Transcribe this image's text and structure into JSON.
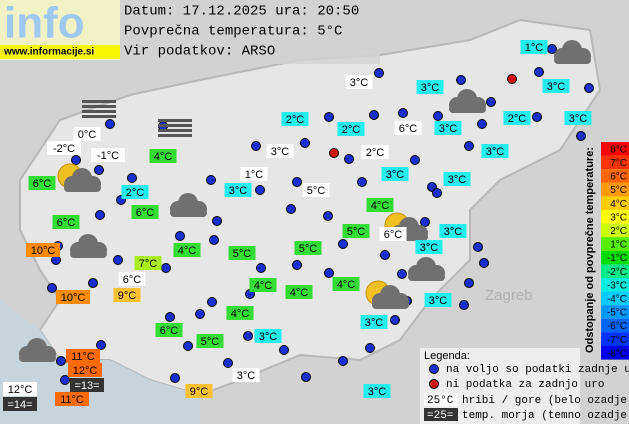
{
  "header": {
    "logo": "info",
    "site": "www.informacije.si",
    "date_line": "Datum: 17.12.2025 ura: 20:50",
    "avg_line": "Povprečna temperatura: 5°C",
    "source_line": "Vir podatkov: ARSO"
  },
  "map_label": "Zagreb",
  "stations": [
    {
      "label": "1°C",
      "color": "#22eeee"
    },
    {
      "label": "3°C",
      "color": "#ffffff"
    },
    {
      "label": "3°C",
      "color": "#22eeee"
    },
    {
      "label": "3°C",
      "color": "#22eeee"
    },
    {
      "label": "2°C",
      "color": "#22eeee"
    },
    {
      "label": "2°C",
      "color": "#22eeee"
    },
    {
      "label": "6°C",
      "color": "#ffffff"
    },
    {
      "label": "3°C",
      "color": "#22eeee"
    },
    {
      "label": "2°C",
      "color": "#22eeee"
    },
    {
      "label": "3°C",
      "color": "#22eeee"
    },
    {
      "label": "0°C",
      "color": "#ffffff"
    },
    {
      "label": "-2°C",
      "color": "#ffffff"
    },
    {
      "label": "-1°C",
      "color": "#ffffff"
    },
    {
      "label": "4°C",
      "color": "#33dd33"
    },
    {
      "label": "3°C",
      "color": "#ffffff"
    },
    {
      "label": "2°C",
      "color": "#ffffff"
    },
    {
      "label": "3°C",
      "color": "#22eeee"
    },
    {
      "label": "3°C",
      "color": "#22eeee"
    },
    {
      "label": "1°C",
      "color": "#ffffff"
    },
    {
      "label": "6°C",
      "color": "#33dd33"
    },
    {
      "label": "2°C",
      "color": "#22eeee"
    },
    {
      "label": "3°C",
      "color": "#22eeee"
    },
    {
      "label": "5°C",
      "color": "#ffffff"
    },
    {
      "label": "3°C",
      "color": "#22eeee"
    },
    {
      "label": "6°C",
      "color": "#33dd33"
    },
    {
      "label": "4°C",
      "color": "#33dd33"
    },
    {
      "label": "6°C",
      "color": "#33dd33"
    },
    {
      "label": "5°C",
      "color": "#33dd33"
    },
    {
      "label": "6°C",
      "color": "#ffffff"
    },
    {
      "label": "3°C",
      "color": "#22eeee"
    },
    {
      "label": "10°C",
      "color": "#ff8c00"
    },
    {
      "label": "4°C",
      "color": "#33dd33"
    },
    {
      "label": "5°C",
      "color": "#33dd33"
    },
    {
      "label": "5°C",
      "color": "#33dd33"
    },
    {
      "label": "3°C",
      "color": "#22eeee"
    },
    {
      "label": "7°C",
      "color": "#aaee22"
    },
    {
      "label": "6°C",
      "color": "#ffffff"
    },
    {
      "label": "4°C",
      "color": "#33dd33"
    },
    {
      "label": "4°C",
      "color": "#33dd33"
    },
    {
      "label": "4°C",
      "color": "#33dd33"
    },
    {
      "label": "10°C",
      "color": "#ff8c00"
    },
    {
      "label": "9°C",
      "color": "#ffc030"
    },
    {
      "label": "3°C",
      "color": "#22eeee"
    },
    {
      "label": "4°C",
      "color": "#33dd33"
    },
    {
      "label": "3°C",
      "color": "#22eeee"
    },
    {
      "label": "6°C",
      "color": "#33dd33"
    },
    {
      "label": "5°C",
      "color": "#33dd33"
    },
    {
      "label": "3°C",
      "color": "#22eeee"
    },
    {
      "label": "11°C",
      "color": "#ff6a00"
    },
    {
      "label": "12°C",
      "color": "#ff6a00"
    },
    {
      "label": "3°C",
      "color": "#ffffff"
    },
    {
      "label": "=13=",
      "color": "#333333"
    },
    {
      "label": "12°C",
      "color": "#ffffff"
    },
    {
      "label": "9°C",
      "color": "#ffc030"
    },
    {
      "label": "11°C",
      "color": "#ff6a00"
    },
    {
      "label": "3°C",
      "color": "#22eeee"
    },
    {
      "label": "=14=",
      "color": "#333333"
    }
  ],
  "scale": {
    "title": "Odstopanje od povprečne temperature:",
    "items": [
      {
        "label": "8°C",
        "color": "#ff0000"
      },
      {
        "label": "7°C",
        "color": "#ff3300"
      },
      {
        "label": "6°C",
        "color": "#ff6600"
      },
      {
        "label": "5°C",
        "color": "#ff9900"
      },
      {
        "label": "4°C",
        "color": "#ffcc00"
      },
      {
        "label": "3°C",
        "color": "#ffff00"
      },
      {
        "label": "2°C",
        "color": "#ccff00"
      },
      {
        "label": "1°C",
        "color": "#55ee00"
      },
      {
        "label": "-1°C",
        "color": "#00dd00"
      },
      {
        "label": "-2°C",
        "color": "#00ee88"
      },
      {
        "label": "-3°C",
        "color": "#00eedd"
      },
      {
        "label": "-4°C",
        "color": "#00ccff"
      },
      {
        "label": "-5°C",
        "color": "#0099ff"
      },
      {
        "label": "-6°C",
        "color": "#0066ff"
      },
      {
        "label": "-7°C",
        "color": "#0033ff"
      },
      {
        "label": "-8°C",
        "color": "#0000ee"
      }
    ]
  },
  "legend": {
    "title": "Legenda:",
    "available": "na voljo so podatki zadnje ure",
    "unavailable": "ni podatka za zadnjo uro",
    "hill_sample": "25°C",
    "hill_text": "hribi / gore (belo ozadje)",
    "sea_sample": "=25=",
    "sea_text": "temp. morja (temno ozadje)"
  }
}
